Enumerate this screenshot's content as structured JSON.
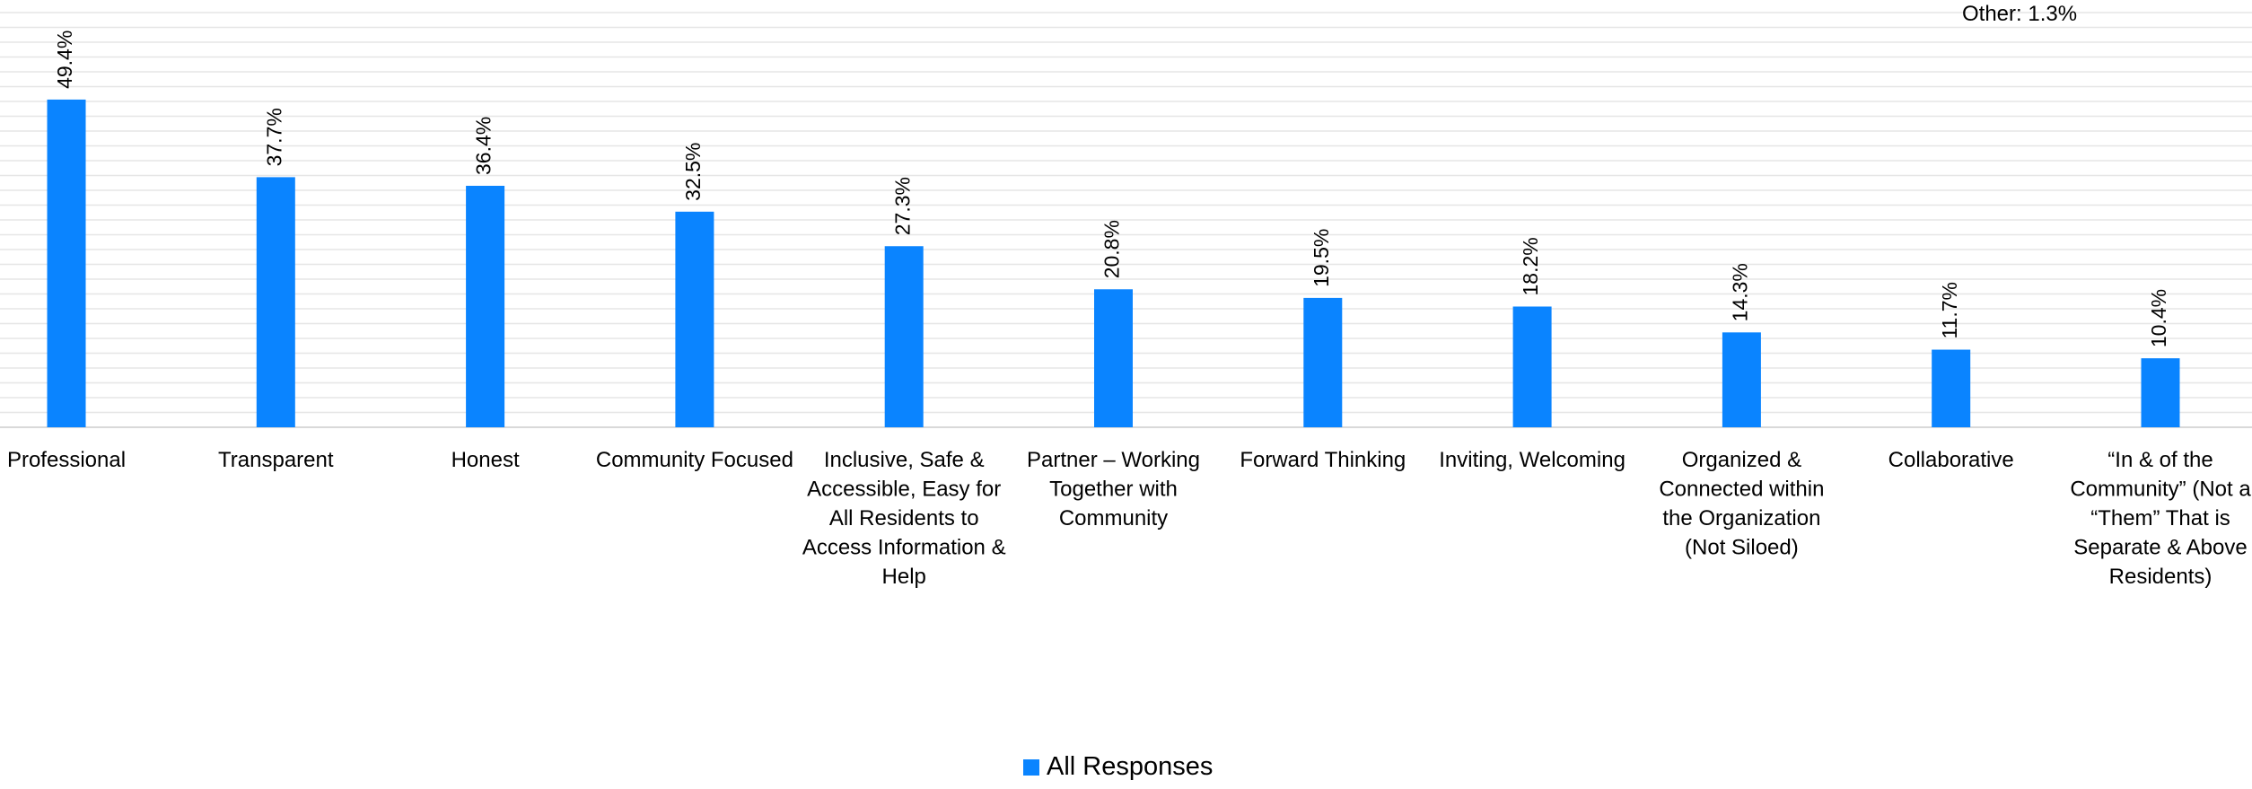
{
  "chart_data": {
    "type": "bar",
    "categories": [
      "Professional",
      "Transparent",
      "Honest",
      "Community Focused",
      "Inclusive, Safe & Accessible, Easy for All Residents to Access Information & Help",
      "Partner – Working Together with Community",
      "Forward Thinking",
      "Inviting, Welcoming",
      "Organized & Connected within the Organization (Not Siloed)",
      "Collaborative",
      "“In & of the Community” (Not a “Them” That is Separate & Above Residents)"
    ],
    "category_lines": [
      [
        "Professional"
      ],
      [
        "Transparent"
      ],
      [
        "Honest"
      ],
      [
        "Community Focused"
      ],
      [
        "Inclusive, Safe &",
        "Accessible, Easy for",
        "All Residents to",
        "Access Information &",
        "Help"
      ],
      [
        "Partner – Working",
        "Together with",
        "Community"
      ],
      [
        "Forward Thinking"
      ],
      [
        "Inviting, Welcoming"
      ],
      [
        "Organized &",
        "Connected within",
        "the Organization",
        "(Not Siloed)"
      ],
      [
        "Collaborative"
      ],
      [
        "“In & of the",
        "Community” (Not a",
        "“Them” That is",
        "Separate & Above",
        "Residents)"
      ]
    ],
    "series": [
      {
        "name": "All Responses",
        "values": [
          49.4,
          37.7,
          36.4,
          32.5,
          27.3,
          20.8,
          19.5,
          18.2,
          14.3,
          11.7,
          10.4
        ],
        "data_labels": [
          "49.4%",
          "37.7%",
          "36.4%",
          "32.5%",
          "27.3%",
          "20.8%",
          "19.5%",
          "18.2%",
          "14.3%",
          "11.7%",
          "10.4%"
        ]
      }
    ],
    "annotation": "Other: 1.3%",
    "ylim": [
      0,
      60
    ],
    "grid": true,
    "legend_position": "bottom",
    "colors": {
      "bar": "#0A84FF",
      "grid": "#E6E6E6",
      "axis": "#D9D9D9",
      "text": "#000000"
    }
  }
}
